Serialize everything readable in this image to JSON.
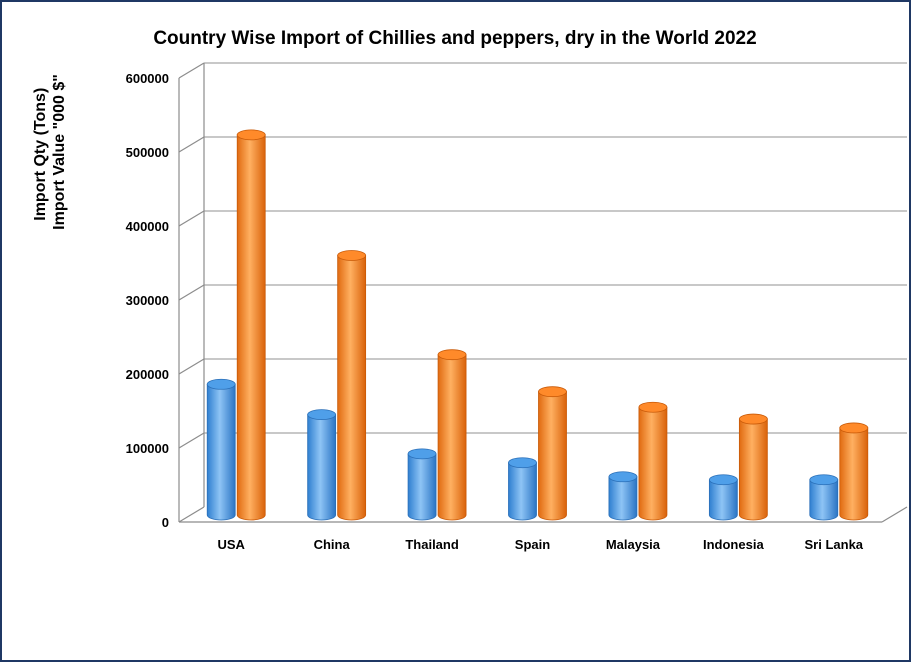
{
  "chart_data": {
    "type": "bar",
    "title": "Country Wise Import of Chillies and peppers, dry  in the World 2022",
    "ylabel_line1": "Import Qty (Tons)",
    "ylabel_line2": "Import Value \"000 $\"",
    "xlabel": "",
    "ylim": [
      0,
      600000
    ],
    "yticks": [
      "0",
      "100000",
      "200000",
      "300000",
      "400000",
      "500000",
      "600000"
    ],
    "grid": true,
    "legend": "none",
    "categories": [
      "USA",
      "China",
      "Thailand",
      "Spain",
      "Malaysia",
      "Indonesia",
      "Sri Lanka"
    ],
    "series": [
      {
        "values": [
          178000,
          137000,
          84000,
          72000,
          53000,
          49000,
          49000
        ],
        "color": "#4f9fe9"
      },
      {
        "values": [
          515000,
          352000,
          218000,
          168000,
          147000,
          131000,
          119000
        ],
        "color": "#ff8a2a"
      }
    ]
  }
}
